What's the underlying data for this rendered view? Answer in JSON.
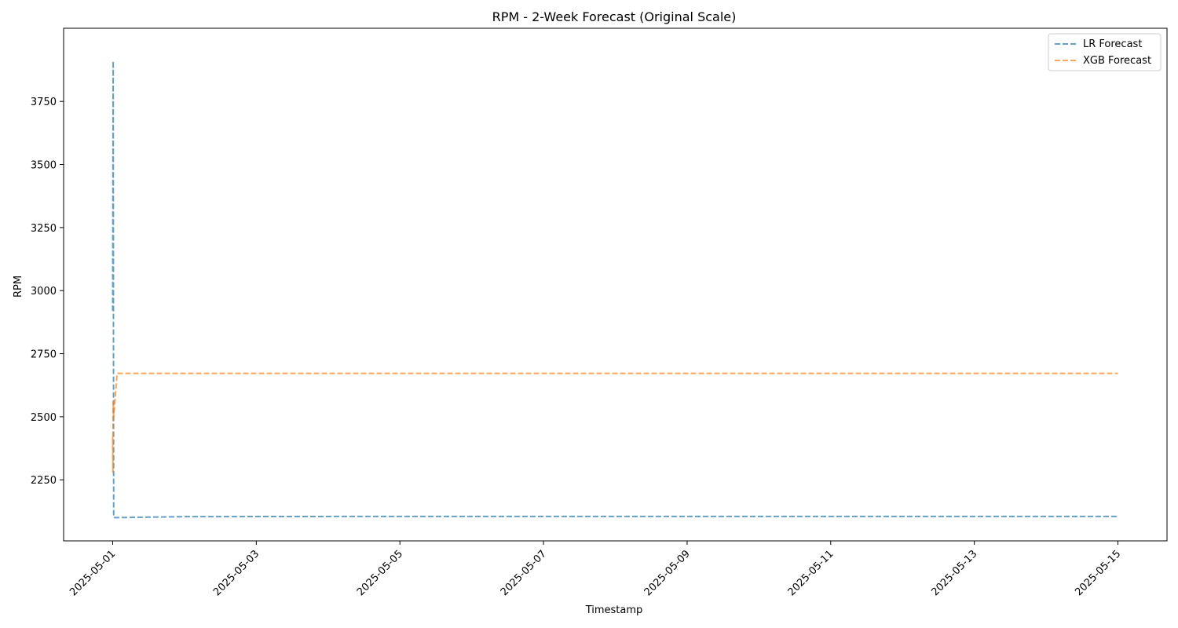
{
  "chart_data": {
    "type": "line",
    "title": "RPM - 2-Week Forecast (Original Scale)",
    "xlabel": "Timestamp",
    "ylabel": "RPM",
    "x_axis_type": "date",
    "xlim": [
      "2025-04-30T07:36",
      "2025-05-15T16:24"
    ],
    "ylim": [
      2008,
      4040
    ],
    "xticks": [
      "2025-05-01",
      "2025-05-03",
      "2025-05-05",
      "2025-05-07",
      "2025-05-09",
      "2025-05-11",
      "2025-05-13",
      "2025-05-15"
    ],
    "yticks": [
      2250,
      2500,
      2750,
      3000,
      3250,
      3500,
      3750
    ],
    "grid": false,
    "legend_position": "top-right",
    "series": [
      {
        "name": "LR Forecast",
        "color": "#1f77b4",
        "line_style": "dashed",
        "points": [
          [
            "2025-05-01T00:00",
            2920
          ],
          [
            "2025-05-01T00:10",
            3910
          ],
          [
            "2025-05-01T00:20",
            2100
          ],
          [
            "2025-05-01T12:00",
            2102
          ],
          [
            "2025-05-02T00:00",
            2104
          ],
          [
            "2025-05-05T00:00",
            2105
          ],
          [
            "2025-05-10T00:00",
            2105
          ],
          [
            "2025-05-15T00:00",
            2105
          ]
        ]
      },
      {
        "name": "XGB Forecast",
        "color": "#ff7f0e",
        "line_style": "dashed",
        "points": [
          [
            "2025-05-01T00:00",
            2420
          ],
          [
            "2025-05-01T00:05",
            2280
          ],
          [
            "2025-05-01T00:10",
            2560
          ],
          [
            "2025-05-01T00:20",
            2500
          ],
          [
            "2025-05-01T01:30",
            2672
          ],
          [
            "2025-05-05T00:00",
            2672
          ],
          [
            "2025-05-10T00:00",
            2672
          ],
          [
            "2025-05-15T00:00",
            2672
          ]
        ]
      }
    ]
  }
}
